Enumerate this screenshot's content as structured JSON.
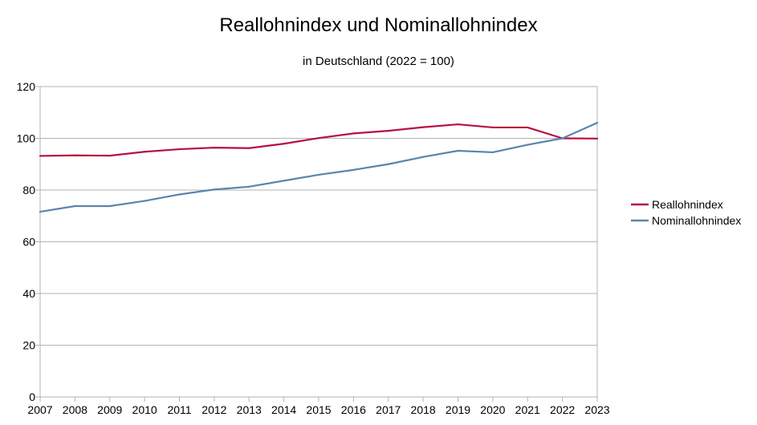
{
  "chart_data": {
    "type": "line",
    "title": "Reallohnindex und Nominallohnindex",
    "subtitle": "in Deutschland (2022 = 100)",
    "xlabel": "",
    "ylabel": "",
    "x": [
      "2007",
      "2008",
      "2009",
      "2010",
      "2011",
      "2012",
      "2013",
      "2014",
      "2015",
      "2016",
      "2017",
      "2018",
      "2019",
      "2020",
      "2021",
      "2022",
      "2023"
    ],
    "ylim": [
      0,
      120
    ],
    "yticks": [
      0,
      20,
      40,
      60,
      80,
      100,
      120
    ],
    "grid": true,
    "legend_position": "right",
    "series": [
      {
        "name": "Reallohnindex",
        "color": "#b5123f",
        "values": [
          93.2,
          93.4,
          93.3,
          94.8,
          95.8,
          96.4,
          96.2,
          97.9,
          100.1,
          101.9,
          102.9,
          104.3,
          105.4,
          104.2,
          104.2,
          100.0,
          99.9
        ]
      },
      {
        "name": "Nominallohnindex",
        "color": "#5b84ad",
        "values": [
          71.6,
          73.8,
          73.8,
          75.8,
          78.3,
          80.2,
          81.3,
          83.6,
          85.9,
          87.8,
          90.0,
          92.8,
          95.2,
          94.6,
          97.5,
          100.0,
          106.0
        ]
      }
    ]
  }
}
